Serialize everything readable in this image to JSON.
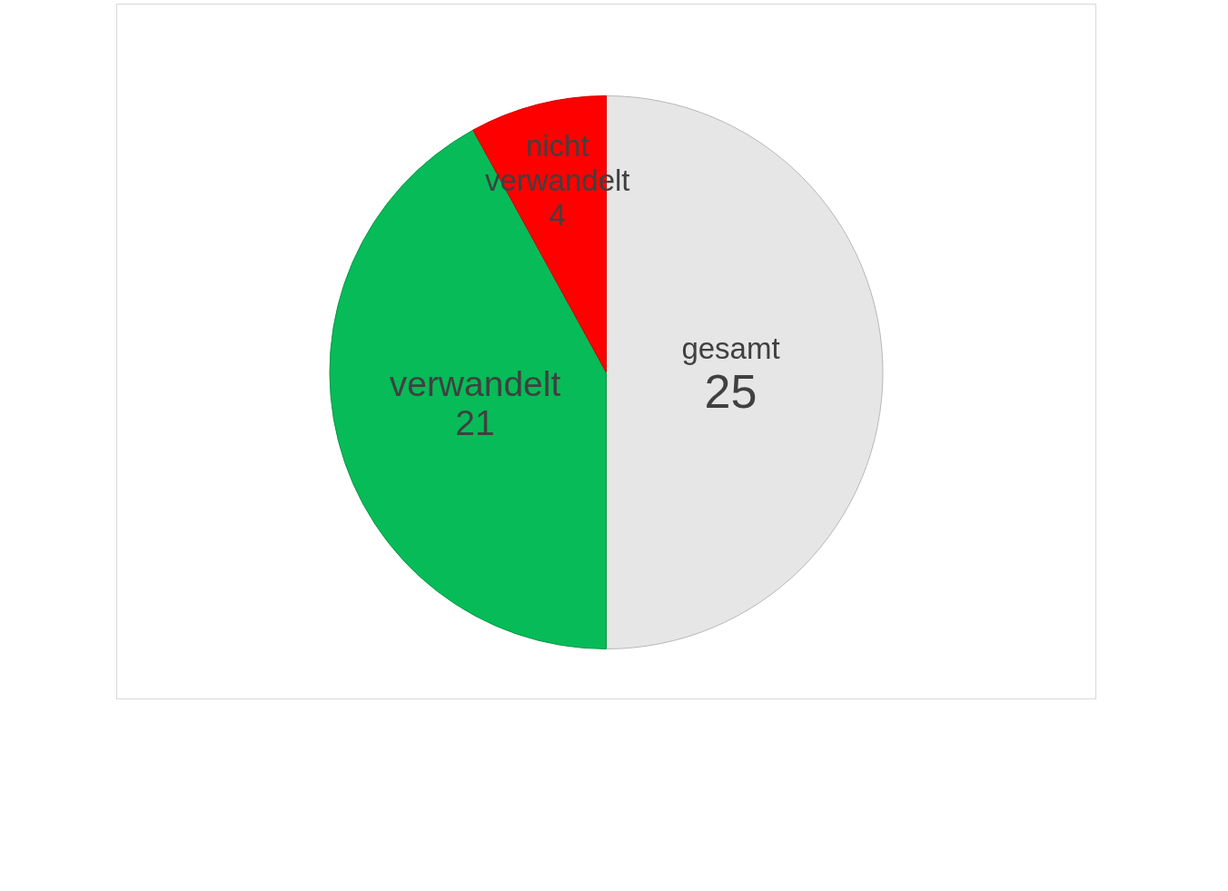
{
  "chart_data": {
    "type": "pie",
    "categories": [
      "gesamt",
      "verwandelt",
      "nicht verwandelt"
    ],
    "values": [
      25,
      21,
      4
    ],
    "colors": [
      "#e6e6e6",
      "#07bb58",
      "#ff0000"
    ],
    "data_labels": true,
    "legend": false
  }
}
